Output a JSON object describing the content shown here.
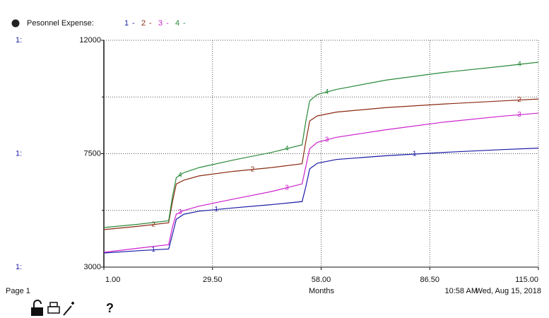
{
  "chart_data": {
    "type": "line",
    "title": "Pesonnel Expense:",
    "legend_separator": "-",
    "axis_series_label": "1:",
    "x_label": "Months",
    "page_label": "Page 1",
    "time": "10:58 AM",
    "date": "Wed, Aug 15, 2018",
    "help": "?",
    "x": [
      1,
      10,
      18,
      19,
      20,
      22,
      26,
      35,
      45,
      53,
      54,
      55,
      57,
      62,
      75,
      90,
      105,
      115
    ],
    "series": [
      {
        "name": "1",
        "color": "#1a1aa6",
        "values": [
          3560,
          3650,
          3720,
          4300,
          4900,
          5100,
          5220,
          5350,
          5480,
          5600,
          6200,
          6900,
          7120,
          7270,
          7420,
          7550,
          7660,
          7720
        ]
      },
      {
        "name": "2",
        "color": "#8b2a12",
        "values": [
          4490,
          4620,
          4760,
          5600,
          6300,
          6450,
          6620,
          6800,
          6950,
          7100,
          8000,
          8800,
          9000,
          9150,
          9330,
          9470,
          9590,
          9670
        ]
      },
      {
        "name": "3",
        "color": "#cc22cc",
        "values": [
          3590,
          3750,
          3890,
          4600,
          5100,
          5250,
          5420,
          5700,
          6000,
          6300,
          7000,
          7700,
          7950,
          8150,
          8450,
          8750,
          8980,
          9110
        ]
      },
      {
        "name": "4",
        "color": "#2a8a3a",
        "values": [
          4570,
          4700,
          4840,
          5800,
          6550,
          6750,
          6950,
          7250,
          7550,
          7850,
          8800,
          9600,
          9850,
          10050,
          10420,
          10720,
          10960,
          11130
        ]
      }
    ],
    "xlim": [
      1,
      115
    ],
    "xticks": [
      {
        "value": 1,
        "label": "1.00"
      },
      {
        "value": 29.5,
        "label": "29.50"
      },
      {
        "value": 58,
        "label": "58.00"
      },
      {
        "value": 86.5,
        "label": "86.50"
      },
      {
        "value": 115,
        "label": "115.00"
      }
    ],
    "ylim": [
      3000,
      12000
    ],
    "yticks": [
      3000,
      7500,
      12000
    ],
    "ygrid": [
      5250,
      9750
    ],
    "grid": true
  }
}
